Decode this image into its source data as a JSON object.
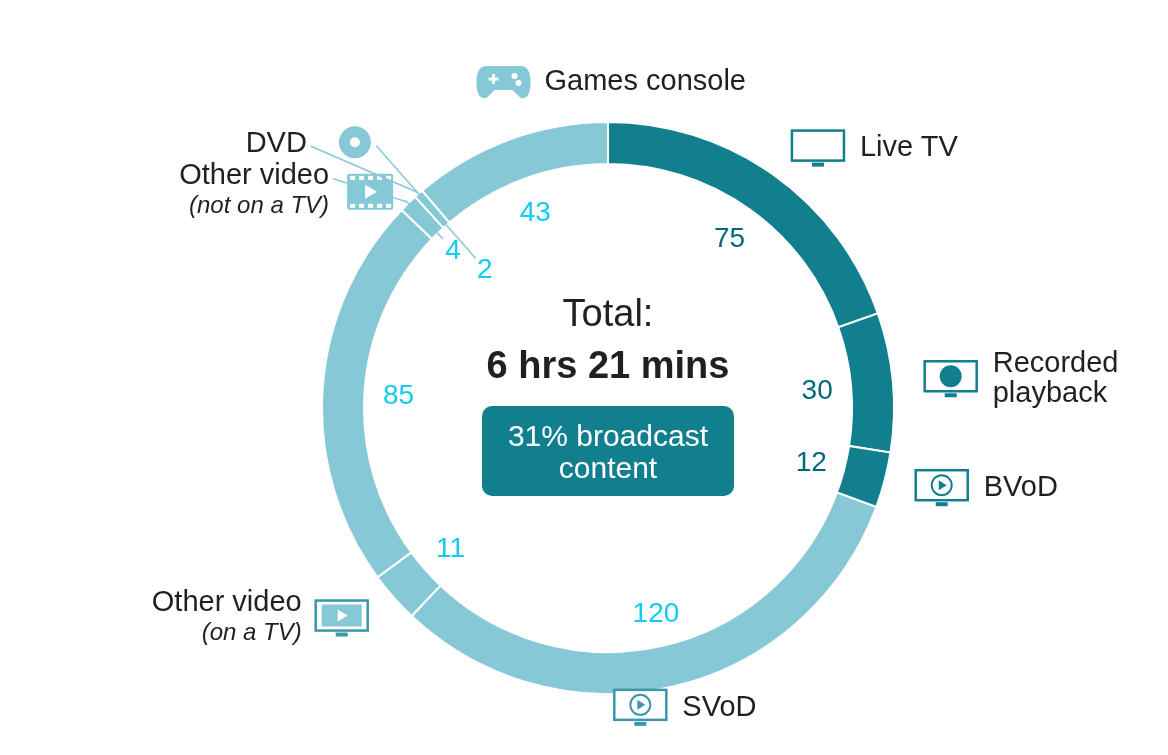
{
  "chart_data": {
    "type": "donut",
    "title": "Total:",
    "subtitle": "6 hrs 21 mins",
    "annotations": [
      "31% broadcast content"
    ],
    "categories": [
      "Live TV",
      "Recorded\nplayback",
      "BVoD",
      "SVoD",
      "Other video\n(on a TV)",
      null,
      "Other video\n(not on a TV)",
      "DVD",
      "Games console"
    ],
    "values": [
      75,
      30,
      12,
      120,
      11,
      85,
      4,
      2,
      43
    ],
    "colors": [
      "#127f8f",
      "#127f8f",
      "#127f8f",
      "#86c8d6",
      "#86c8d6",
      "#86c8d6",
      "#86c8d6",
      "#86c8d6",
      "#86c8d6"
    ],
    "data_labels": true,
    "legend": "right"
  }
}
